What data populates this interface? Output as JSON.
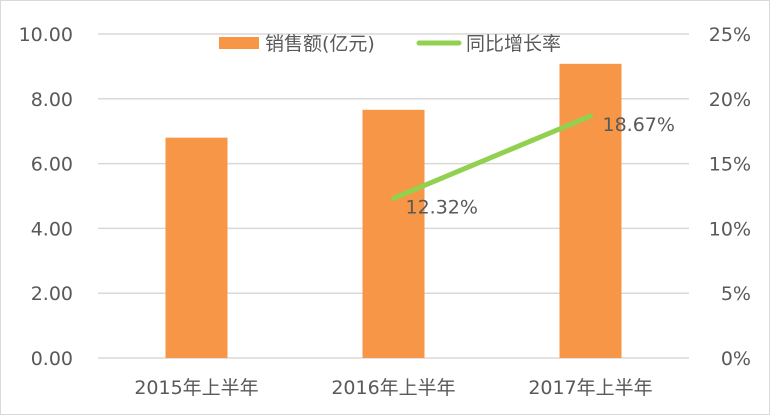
{
  "chart_data": {
    "type": "bar",
    "title": "",
    "categories": [
      "2015年上半年",
      "2016年上半年",
      "2017年上半年"
    ],
    "series": [
      {
        "name": "销售额(亿元)",
        "type": "bar",
        "axis": "left",
        "color": "#F79646",
        "values": [
          6.8,
          7.66,
          9.08
        ]
      },
      {
        "name": "同比增长率",
        "type": "line",
        "axis": "right",
        "color": "#92D050",
        "values": [
          null,
          12.32,
          18.67
        ],
        "data_labels": [
          "",
          "12.32%",
          "18.67%"
        ]
      }
    ],
    "y_left": {
      "ylim": [
        0,
        10
      ],
      "ticks": [
        "0.00",
        "2.00",
        "4.00",
        "6.00",
        "8.00",
        "10.00"
      ]
    },
    "y_right": {
      "ylim": [
        0,
        25
      ],
      "ticks": [
        "0%",
        "5%",
        "10%",
        "15%",
        "20%",
        "25%"
      ]
    },
    "xlabel": "",
    "ylabel": "",
    "grid": true,
    "legend": {
      "position": "top",
      "entries": [
        "销售额(亿元)",
        "同比增长率"
      ]
    }
  }
}
